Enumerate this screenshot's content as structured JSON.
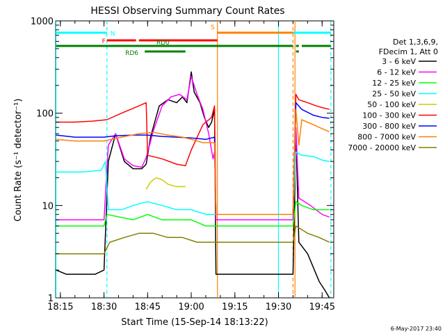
{
  "chart_data": {
    "type": "line",
    "title": "HESSI Observing Summary Count Rates",
    "xlabel": "Start Time (15-Sep-14 18:13:22)",
    "ylabel": "Count Rate (s⁻¹ detector⁻¹)",
    "yscale": "log",
    "ylim": [
      1,
      1000
    ],
    "xlim": [
      "18:13:22",
      "19:49:00"
    ],
    "x_ticks": [
      "18:15",
      "18:30",
      "18:45",
      "19:00",
      "19:15",
      "19:30",
      "19:45"
    ],
    "y_ticks": [
      "1",
      "10",
      "100",
      "1000"
    ],
    "grid": false,
    "legend": {
      "placement": "right",
      "header": [
        "Det 1,3,6,9,",
        "FDecim 1, Att 0"
      ],
      "entries": [
        {
          "label": "3 - 6 keV",
          "color": "#000000"
        },
        {
          "label": "6 - 12 keV",
          "color": "#ff00ff"
        },
        {
          "label": "12 - 25 keV",
          "color": "#00ff00"
        },
        {
          "label": "25 - 50 keV",
          "color": "#00ffff"
        },
        {
          "label": "50 - 100 keV",
          "color": "#cccc00"
        },
        {
          "label": "100 - 300 keV",
          "color": "#ff0000"
        },
        {
          "label": "300 - 800 keV",
          "color": "#0000ff"
        },
        {
          "label": "800 - 7000 keV",
          "color": "#ff8000"
        },
        {
          "label": "7000 - 20000 keV",
          "color": "#808000"
        }
      ]
    },
    "series": [
      {
        "name": "3 - 6 keV",
        "color": "#000000",
        "points": [
          [
            "18:13:30",
            2
          ],
          [
            "18:17",
            1.8
          ],
          [
            "18:22",
            1.8
          ],
          [
            "18:27",
            1.8
          ],
          [
            "18:30",
            2
          ],
          [
            "18:31:30",
            30
          ],
          [
            "18:34",
            60
          ],
          [
            "18:37",
            30
          ],
          [
            "18:40",
            25
          ],
          [
            "18:43",
            25
          ],
          [
            "18:44:30",
            28
          ],
          [
            "18:46",
            55
          ],
          [
            "18:49",
            120
          ],
          [
            "18:52",
            140
          ],
          [
            "18:55",
            130
          ],
          [
            "18:57",
            150
          ],
          [
            "18:58:30",
            130
          ],
          [
            "19:00",
            280
          ],
          [
            "19:01",
            170
          ],
          [
            "19:03",
            130
          ],
          [
            "19:04:30",
            90
          ],
          [
            "19:06",
            70
          ],
          [
            "19:07",
            80
          ],
          [
            "19:08",
            110
          ],
          [
            "19:08:30",
            1.8
          ],
          [
            "19:35",
            1.8
          ],
          [
            "19:36",
            60
          ],
          [
            "19:37",
            4
          ],
          [
            "19:40",
            3
          ],
          [
            "19:44",
            1.5
          ],
          [
            "19:46",
            1.2
          ],
          [
            "19:47:30",
            1
          ]
        ]
      },
      {
        "name": "6 - 12 keV",
        "color": "#ff00ff",
        "points": [
          [
            "18:13:30",
            7
          ],
          [
            "18:22",
            7
          ],
          [
            "18:30",
            7
          ],
          [
            "18:31:30",
            45
          ],
          [
            "18:34",
            60
          ],
          [
            "18:37",
            32
          ],
          [
            "18:40",
            27
          ],
          [
            "18:43",
            26
          ],
          [
            "18:44:30",
            33
          ],
          [
            "18:47",
            65
          ],
          [
            "18:50",
            120
          ],
          [
            "18:53",
            150
          ],
          [
            "18:56",
            160
          ],
          [
            "18:58:30",
            140
          ],
          [
            "19:00",
            250
          ],
          [
            "19:02",
            160
          ],
          [
            "19:04",
            110
          ],
          [
            "19:06",
            60
          ],
          [
            "19:07:30",
            32
          ],
          [
            "19:08",
            38
          ],
          [
            "19:08:30",
            7
          ],
          [
            "19:35",
            7
          ],
          [
            "19:36",
            70
          ],
          [
            "19:37",
            12
          ],
          [
            "19:41",
            10
          ],
          [
            "19:45",
            8
          ],
          [
            "19:47:30",
            7.5
          ]
        ]
      },
      {
        "name": "12 - 25 keV",
        "color": "#00ff00",
        "points": [
          [
            "18:13:30",
            6
          ],
          [
            "18:22",
            6
          ],
          [
            "18:30",
            6
          ],
          [
            "18:31",
            8
          ],
          [
            "18:40",
            7
          ],
          [
            "18:45",
            8
          ],
          [
            "18:50",
            7
          ],
          [
            "18:55",
            7
          ],
          [
            "19:00",
            7
          ],
          [
            "19:05",
            6
          ],
          [
            "19:08",
            6
          ],
          [
            "19:08:30",
            6
          ],
          [
            "19:35",
            6
          ],
          [
            "19:36",
            11
          ],
          [
            "19:38",
            10
          ],
          [
            "19:42",
            9
          ],
          [
            "19:47:30",
            9
          ]
        ]
      },
      {
        "name": "25 - 50 keV",
        "color": "#00ffff",
        "points": [
          [
            "18:13:30",
            23
          ],
          [
            "18:22",
            23
          ],
          [
            "18:29",
            24
          ],
          [
            "18:30:30",
            30
          ],
          [
            "18:31:30",
            9
          ],
          [
            "18:36",
            9
          ],
          [
            "18:40",
            10
          ],
          [
            "18:45",
            11
          ],
          [
            "18:50",
            10
          ],
          [
            "18:55",
            9
          ],
          [
            "19:00",
            9
          ],
          [
            "19:05",
            8
          ],
          [
            "19:08",
            8
          ],
          [
            "19:08:30",
            8
          ],
          [
            "19:35",
            8
          ],
          [
            "19:36",
            38
          ],
          [
            "19:38",
            35
          ],
          [
            "19:42",
            34
          ],
          [
            "19:45",
            31
          ],
          [
            "19:47:30",
            30
          ]
        ]
      },
      {
        "name": "50 - 100 keV",
        "color": "#cccc00",
        "points": [
          [
            "18:44:30",
            15
          ],
          [
            "18:46",
            18
          ],
          [
            "18:48",
            20
          ],
          [
            "18:50",
            19
          ],
          [
            "18:52",
            17
          ],
          [
            "18:55",
            16
          ],
          [
            "18:58",
            16
          ]
        ]
      },
      {
        "name": "100 - 300 keV",
        "color": "#ff0000",
        "points": [
          [
            "18:13:30",
            80
          ],
          [
            "18:20",
            80
          ],
          [
            "18:26",
            82
          ],
          [
            "18:31",
            85
          ],
          [
            "18:36",
            100
          ],
          [
            "18:42",
            120
          ],
          [
            "18:44:30",
            130
          ],
          [
            "18:45",
            35
          ],
          [
            "18:50",
            32
          ],
          [
            "18:55",
            28
          ],
          [
            "18:58",
            27
          ],
          [
            "19:00",
            40
          ],
          [
            "19:04",
            75
          ],
          [
            "19:07",
            90
          ],
          [
            "19:08",
            120
          ],
          [
            "19:08:30",
            8
          ],
          [
            "19:35",
            8
          ],
          [
            "19:36",
            160
          ],
          [
            "19:37",
            140
          ],
          [
            "19:40",
            130
          ],
          [
            "19:43",
            120
          ],
          [
            "19:45",
            115
          ],
          [
            "19:47:30",
            110
          ]
        ]
      },
      {
        "name": "300 - 800 keV",
        "color": "#0000ff",
        "points": [
          [
            "18:13:30",
            58
          ],
          [
            "18:20",
            55
          ],
          [
            "18:26",
            55
          ],
          [
            "18:30",
            55
          ],
          [
            "18:34",
            57
          ],
          [
            "18:40",
            58
          ],
          [
            "18:45",
            58
          ],
          [
            "18:50",
            56
          ],
          [
            "18:55",
            55
          ],
          [
            "19:00",
            54
          ],
          [
            "19:05",
            52
          ],
          [
            "19:08",
            55
          ],
          [
            "19:08:30",
            8
          ],
          [
            "19:35",
            8
          ],
          [
            "19:36",
            130
          ],
          [
            "19:38",
            110
          ],
          [
            "19:42",
            95
          ],
          [
            "19:45",
            90
          ],
          [
            "19:47:30",
            88
          ]
        ]
      },
      {
        "name": "800 - 7000 keV",
        "color": "#ff8000",
        "points": [
          [
            "18:13:30",
            52
          ],
          [
            "18:20",
            50
          ],
          [
            "18:26",
            50
          ],
          [
            "18:30",
            50
          ],
          [
            "18:36",
            55
          ],
          [
            "18:42",
            60
          ],
          [
            "18:47",
            62
          ],
          [
            "18:52",
            58
          ],
          [
            "18:57",
            55
          ],
          [
            "19:00",
            52
          ],
          [
            "19:04",
            48
          ],
          [
            "19:08",
            48
          ],
          [
            "19:08:30",
            8
          ],
          [
            "19:35",
            8
          ],
          [
            "19:36",
            110
          ],
          [
            "19:37",
            45
          ],
          [
            "19:38",
            85
          ],
          [
            "19:42",
            75
          ],
          [
            "19:45",
            68
          ],
          [
            "19:47:30",
            63
          ]
        ]
      },
      {
        "name": "7000 - 20000 keV",
        "color": "#808000",
        "points": [
          [
            "18:13:30",
            3
          ],
          [
            "18:22",
            3
          ],
          [
            "18:30",
            3
          ],
          [
            "18:32",
            4
          ],
          [
            "18:37",
            4.5
          ],
          [
            "18:42",
            5
          ],
          [
            "18:47",
            5
          ],
          [
            "18:52",
            4.5
          ],
          [
            "18:57",
            4.5
          ],
          [
            "19:02",
            4
          ],
          [
            "19:08",
            4
          ],
          [
            "19:08:30",
            4
          ],
          [
            "19:35",
            4
          ],
          [
            "19:36",
            6
          ],
          [
            "19:40",
            5
          ],
          [
            "19:44",
            4.5
          ],
          [
            "19:47:30",
            4
          ]
        ]
      }
    ],
    "vertical_lines": [
      {
        "x": "18:13:30",
        "color": "#00ffff",
        "style": "solid"
      },
      {
        "x": "18:31",
        "color": "#00ffff",
        "style": "dashed"
      },
      {
        "x": "19:09",
        "color": "#ff8000",
        "style": "solid"
      },
      {
        "x": "19:30",
        "color": "#00ffff",
        "style": "solid"
      },
      {
        "x": "19:35",
        "color": "#ff8000",
        "style": "dashed"
      },
      {
        "x": "19:35:40",
        "color": "#ff8000",
        "style": "solid"
      },
      {
        "x": "19:48",
        "color": "#00ffff",
        "style": "dashed"
      }
    ],
    "flag_bars": [
      {
        "label": "N",
        "color": "#00ffff",
        "level": 0,
        "segments": [
          [
            "18:13:30",
            "18:31"
          ],
          [
            "19:35",
            "19:48"
          ]
        ],
        "label_at": "18:31"
      },
      {
        "label": "S",
        "color": "#ff8000",
        "level": 0,
        "segments": [
          [
            "19:09",
            "19:35"
          ]
        ],
        "label_at": "19:09"
      },
      {
        "label": "F",
        "color": "#ff0000",
        "level": 1,
        "segments": [
          [
            "18:31",
            "18:41"
          ],
          [
            "18:42",
            "19:09"
          ]
        ],
        "label_at": "18:31"
      },
      {
        "label": "RD0",
        "color": "#008000",
        "level": 2,
        "segments": [
          [
            "18:13:30",
            "19:35"
          ],
          [
            "19:36",
            "19:37"
          ],
          [
            "19:38",
            "19:48"
          ]
        ],
        "label_at": "18:48"
      },
      {
        "label": "RD6",
        "color": "#008000",
        "level": 3,
        "segments": [
          [
            "18:44",
            "18:58"
          ],
          [
            "19:36",
            "19:37"
          ]
        ],
        "label_at": "18:44"
      }
    ]
  },
  "footer": {
    "date_stamp": "6-May-2017 23:40"
  }
}
